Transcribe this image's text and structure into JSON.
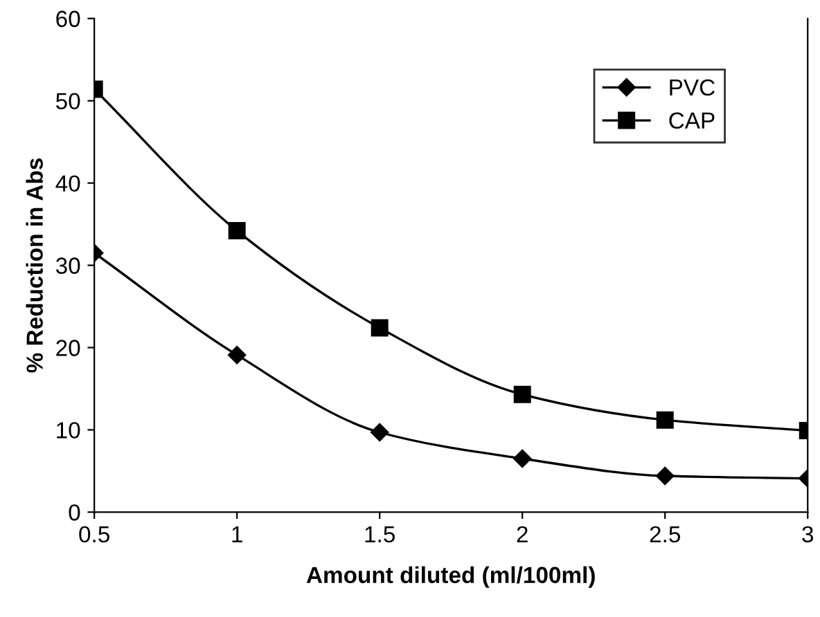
{
  "chart_data": {
    "type": "line",
    "xlabel": "Amount diluted (ml/100ml)",
    "ylabel": "% Reduction in Abs",
    "x": [
      0.5,
      1,
      1.5,
      2,
      2.5,
      3
    ],
    "series": [
      {
        "name": "PVC",
        "color": "#000000",
        "marker": "diamond",
        "values": [
          31.5,
          19.1,
          9.7,
          6.5,
          4.4,
          4.1
        ]
      },
      {
        "name": "CAP",
        "color": "#000000",
        "marker": "square",
        "values": [
          51.4,
          34.2,
          22.4,
          14.3,
          11.2,
          9.9
        ]
      }
    ],
    "xlim": [
      0.5,
      3
    ],
    "xticks": [
      0.5,
      1,
      1.5,
      2,
      2.5,
      3
    ],
    "ylim": [
      0,
      60
    ],
    "yticks": [
      0,
      10,
      20,
      30,
      40,
      50,
      60
    ],
    "grid": false,
    "legend": "top right",
    "line_style": "solid"
  }
}
